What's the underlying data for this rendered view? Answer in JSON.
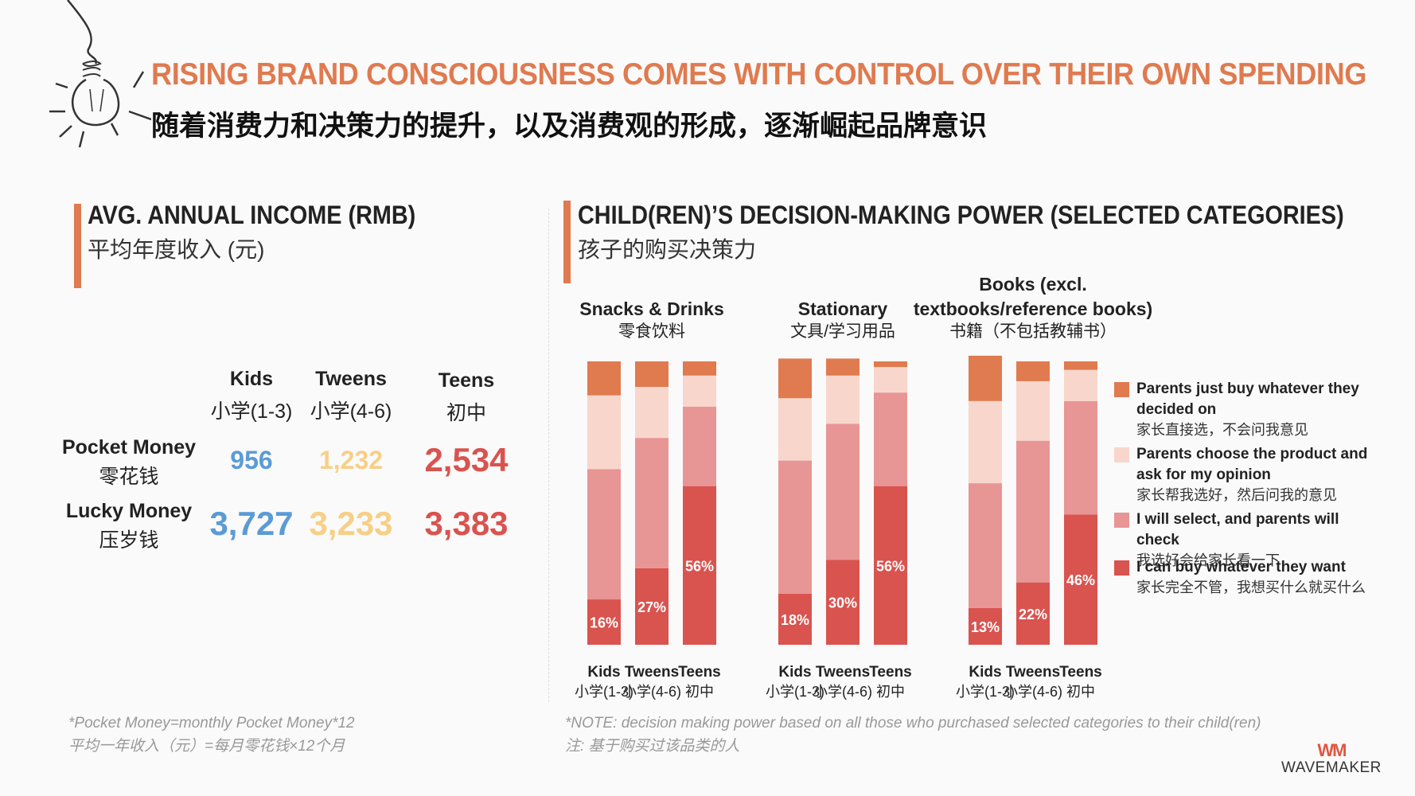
{
  "header": {
    "title_en": "RISING BRAND CONSCIOUSNESS COMES WITH CONTROL OVER THEIR OWN SPENDING",
    "title_cn": "随着消费力和决策力的提升，以及消费观的形成，逐渐崛起品牌意识"
  },
  "income": {
    "title_en": "AVG. ANNUAL INCOME (RMB)",
    "title_cn": "平均年度收入 (元)",
    "columns": [
      {
        "en": "Kids",
        "cn": "小学(1-3)",
        "color": "#5b9bd5"
      },
      {
        "en": "Tweens",
        "cn": "小学(4-6)",
        "color": "#f7cf86"
      },
      {
        "en": "Teens",
        "cn": "初中",
        "color": "#d9534f"
      }
    ],
    "rows": [
      {
        "en": "Pocket Money",
        "cn": "零花钱",
        "values": [
          "956",
          "1,232",
          "2,534"
        ]
      },
      {
        "en": "Lucky Money",
        "cn": "压岁钱",
        "values": [
          "3,727",
          "3,233",
          "3,383"
        ]
      }
    ],
    "footnote_en": "*Pocket Money=monthly Pocket Money*12",
    "footnote_cn": "平均一年收入（元）=每月零花钱×12个月"
  },
  "decision": {
    "title_en": "CHILD(REN)’S DECISION-MAKING POWER (SELECTED CATEGORIES)",
    "title_cn": "孩子的购买决策力",
    "footnote_en": "*NOTE: decision making power based on all those who purchased selected categories to their child(ren)",
    "footnote_cn": "注: 基于购买过该品类的人"
  },
  "chart_data": {
    "type": "bar",
    "stacked": true,
    "normalized_percent": true,
    "group_labels": [
      {
        "en": "Snacks & Drinks",
        "cn": "零食饮料"
      },
      {
        "en": "Stationary",
        "cn": "文具/学习用品"
      },
      {
        "en": "Books (excl. textbooks/reference books)",
        "cn": "书籍（不包括教辅书）"
      }
    ],
    "categories": [
      {
        "en": "Kids",
        "cn": "小学(1-3)"
      },
      {
        "en": "Tweens",
        "cn": "小学(4-6)"
      },
      {
        "en": "Teens",
        "cn": "初中"
      }
    ],
    "series": [
      {
        "name_en": "I can buy whatever they want",
        "name_cn": "家长完全不管，我想买什么就买什么",
        "color": "#d9534f",
        "values": [
          [
            16,
            27,
            56
          ],
          [
            18,
            30,
            56
          ],
          [
            13,
            22,
            46
          ]
        ],
        "labeled": true
      },
      {
        "name_en": "I will select, and parents will check",
        "name_cn": "我选好会给家长看一下",
        "color": "#e89595",
        "values": [
          [
            46,
            46,
            28
          ],
          [
            47,
            48,
            33
          ],
          [
            44,
            50,
            40
          ]
        ],
        "labeled": false
      },
      {
        "name_en": "Parents choose the product and ask for my opinion",
        "name_cn": "家长帮我选好，然后问我的意见",
        "color": "#f8d6cc",
        "values": [
          [
            26,
            18,
            11
          ],
          [
            22,
            17,
            9
          ],
          [
            29,
            21,
            11
          ]
        ],
        "labeled": false
      },
      {
        "name_en": "Parents just buy whatever they decided on",
        "name_cn": "家长直接选，不会问我意见",
        "color": "#e07a4f",
        "values": [
          [
            12,
            9,
            5
          ],
          [
            14,
            6,
            2
          ],
          [
            16,
            7,
            3
          ]
        ],
        "labeled": false
      }
    ],
    "ylim": [
      0,
      100
    ],
    "legend_position": "right"
  },
  "brand": {
    "mark": "WM",
    "name": "WAVEMAKER"
  }
}
